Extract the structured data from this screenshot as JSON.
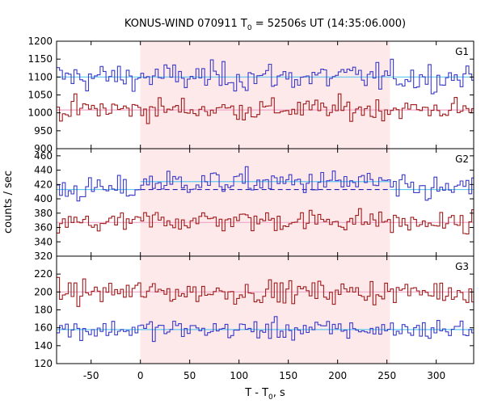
{
  "chart_data": {
    "type": "line",
    "title": "KONUS-WIND 070911 T",
    "title_sub": "0",
    "title_rest": " = 52506s UT (14:35:06.000)",
    "xlabel_main": "T - T",
    "xlabel_sub": "0",
    "xlabel_rest": ", s",
    "ylabel": "counts / sec",
    "xlim": [
      -85,
      338
    ],
    "x_ticks": [
      -50,
      0,
      50,
      100,
      150,
      200,
      250,
      300
    ],
    "x_tick_labels": [
      "-50",
      "0",
      "50",
      "100",
      "150",
      "200",
      "250",
      "300"
    ],
    "highlight_interval": [
      0,
      253
    ],
    "highlight_color": "#fde8ea",
    "bin_width_s": 2.944,
    "panels": [
      {
        "label": "G1",
        "ylim": [
          900,
          1200
        ],
        "y_ticks": [
          900,
          950,
          1000,
          1050,
          1100,
          1150,
          1200
        ],
        "y_tick_labels": [
          "900",
          "950",
          "1000",
          "1050",
          "1100",
          "1150",
          "1200"
        ],
        "series": [
          {
            "color": "#3a3ac8",
            "mean": 1100,
            "noise": 28,
            "step_in_interval": 0
          },
          {
            "color": "#a01c1c",
            "mean": 1010,
            "noise": 22,
            "step_in_interval": 0
          }
        ],
        "background_lines": [
          {
            "color": "#5fc8f0",
            "y": 1100,
            "dashed_in_interval": false
          },
          {
            "color": "#f0a6c8",
            "y": 1008,
            "dashed_in_interval": false
          }
        ]
      },
      {
        "label": "G2",
        "ylim": [
          320,
          470
        ],
        "y_ticks": [
          320,
          340,
          360,
          380,
          400,
          420,
          440,
          460
        ],
        "y_tick_labels": [
          "320",
          "340",
          "360",
          "380",
          "400",
          "420",
          "440",
          "460"
        ],
        "series": [
          {
            "color": "#3a3ac8",
            "mean": 413,
            "noise": 12,
            "step_in_interval": 10
          },
          {
            "color": "#a01c1c",
            "mean": 366,
            "noise": 11,
            "step_in_interval": 4
          }
        ],
        "background_lines": [
          {
            "color": "#5fc8f0",
            "y": 413,
            "y_interval": 424,
            "dashed_in_interval": false
          },
          {
            "color": "#2020b0",
            "y": 413,
            "dashed_in_interval": true
          },
          {
            "color": "#f0a6c8",
            "y": 367,
            "dashed_in_interval": false
          }
        ]
      },
      {
        "label": "G3",
        "ylim": [
          120,
          240
        ],
        "y_ticks": [
          120,
          140,
          160,
          180,
          200,
          220
        ],
        "y_tick_labels": [
          "120",
          "140",
          "160",
          "180",
          "200",
          "220"
        ],
        "series": [
          {
            "color": "#a01c1c",
            "mean": 200,
            "noise": 9,
            "step_in_interval": 0
          },
          {
            "color": "#3a3ac8",
            "mean": 158,
            "noise": 8,
            "step_in_interval": 0
          }
        ],
        "background_lines": [
          {
            "color": "#f0a6c8",
            "y": 200,
            "dashed_in_interval": false
          },
          {
            "color": "#5fc8f0",
            "y": 158,
            "dashed_in_interval": false
          }
        ]
      }
    ]
  }
}
